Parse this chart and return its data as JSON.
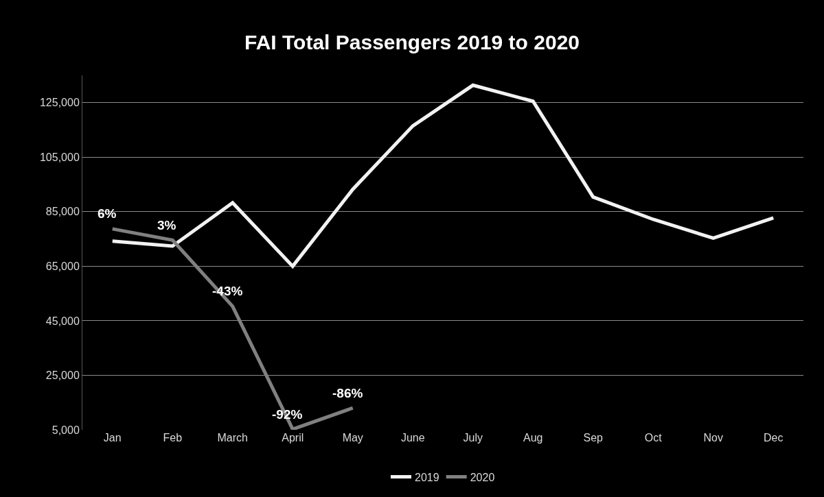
{
  "chart_data": {
    "type": "line",
    "title": "FAI Total Passengers 2019 to 2020",
    "categories": [
      "Jan",
      "Feb",
      "March",
      "April",
      "May",
      "June",
      "July",
      "Aug",
      "Sep",
      "Oct",
      "Nov",
      "Dec"
    ],
    "series": [
      {
        "name": "2019",
        "color": "#f2f2f2",
        "values": [
          74200,
          72400,
          88300,
          65000,
          93200,
          116500,
          131400,
          125500,
          90400,
          82200,
          75300,
          82700
        ]
      },
      {
        "name": "2020",
        "color": "#808080",
        "values": [
          78700,
          74600,
          50300,
          5200,
          13000,
          null,
          null,
          null,
          null,
          null,
          null,
          null
        ]
      }
    ],
    "annotations": [
      {
        "text": "6%",
        "x": "Jan",
        "y": 78700
      },
      {
        "text": "3%",
        "x": "Feb",
        "y": 74600
      },
      {
        "text": "-43%",
        "x": "March",
        "y": 50300
      },
      {
        "text": "-92%",
        "x": "April",
        "y": 5200
      },
      {
        "text": "-86%",
        "x": "May",
        "y": 13000
      }
    ],
    "ylim": [
      5000,
      135000
    ],
    "yticks": [
      {
        "value": 5000,
        "label": "5,000"
      },
      {
        "value": 25000,
        "label": "25,000"
      },
      {
        "value": 45000,
        "label": "45,000"
      },
      {
        "value": 65000,
        "label": "65,000"
      },
      {
        "value": 85000,
        "label": "85,000"
      },
      {
        "value": 105000,
        "label": "105,000"
      },
      {
        "value": 125000,
        "label": "125,000"
      }
    ],
    "grid": "y",
    "legend": "bottom",
    "marker": "none",
    "line_style": "solid"
  }
}
